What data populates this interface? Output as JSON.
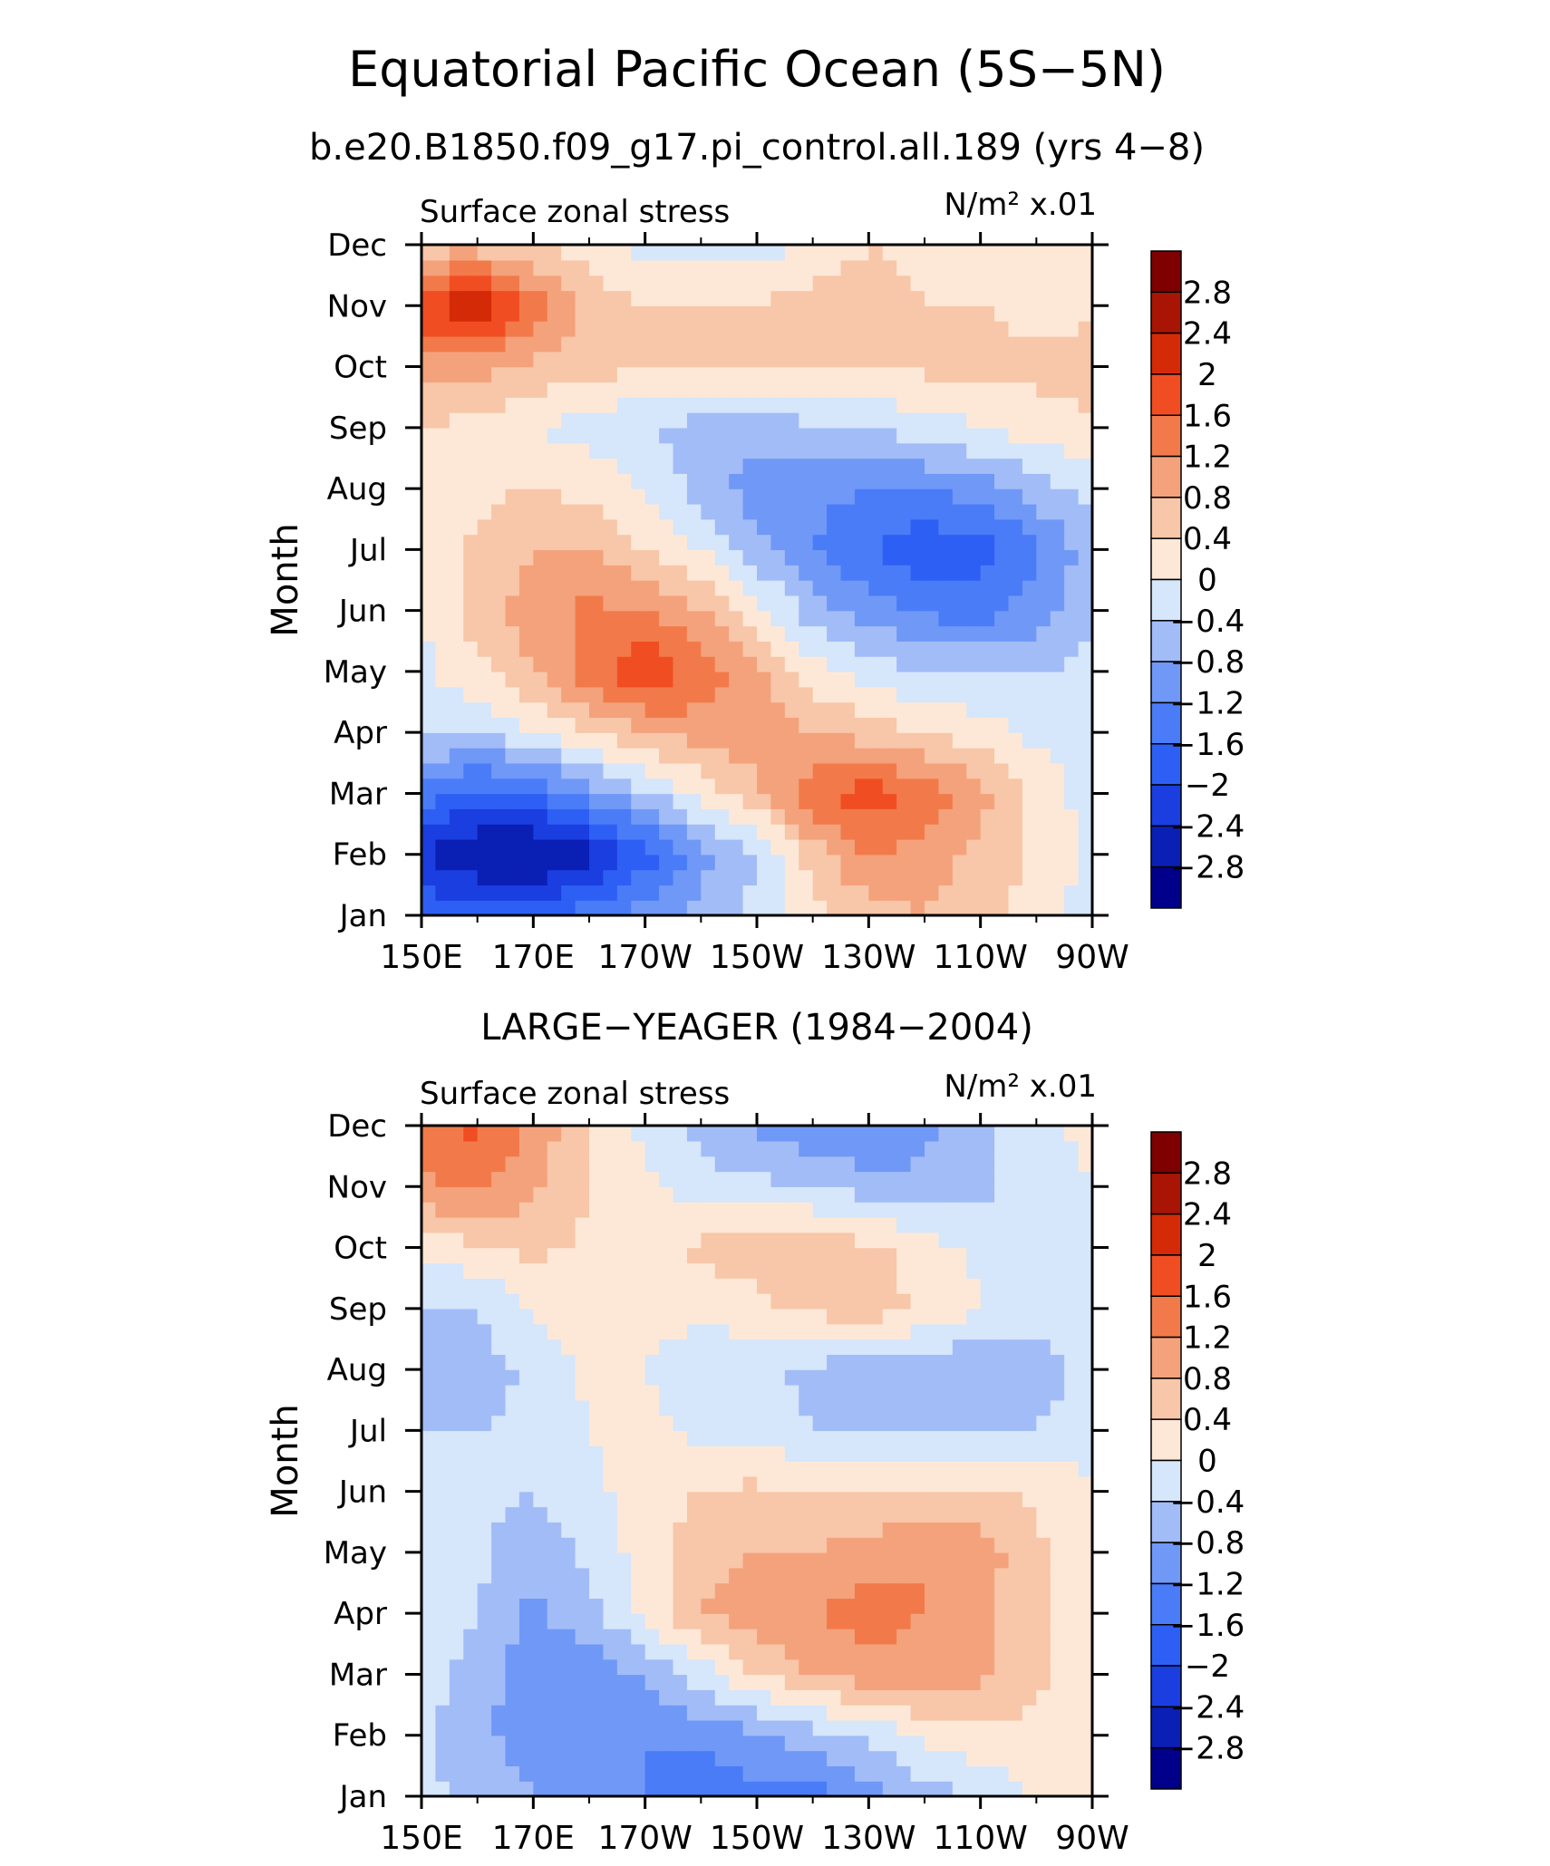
{
  "figure": {
    "title": "Equatorial Pacific Ocean (5S−5N)",
    "subtitle": "b.e20.B1850.f09_g17.pi_control.all.189 (yrs 4−8)"
  },
  "chart_data": [
    {
      "type": "heatmap",
      "panel_title": "",
      "variable_label": "Surface zonal stress",
      "units_label": "N/m² x.01",
      "ylabel": "Month",
      "x_ticks": [
        "150E",
        "170E",
        "170W",
        "150W",
        "130W",
        "110W",
        "90W"
      ],
      "x_tick_lon": [
        150,
        170,
        190,
        210,
        230,
        250,
        270
      ],
      "y_ticks": [
        "Jan",
        "Feb",
        "Mar",
        "Apr",
        "May",
        "Jun",
        "Jul",
        "Aug",
        "Sep",
        "Oct",
        "Nov",
        "Dec"
      ],
      "colorbar_labels": [
        "2.8",
        "2.4",
        "2",
        "1.6",
        "1.2",
        "0.8",
        "0.4",
        "0",
        "−0.4",
        "−0.8",
        "−1.2",
        "−1.6",
        "−2",
        "−2.4",
        "−2.8"
      ],
      "levels": [
        -2.8,
        -2.4,
        -2.0,
        -1.6,
        -1.2,
        -0.8,
        -0.4,
        0,
        0.4,
        0.8,
        1.2,
        1.6,
        2.0,
        2.4,
        2.8
      ],
      "lon_range": [
        150,
        270
      ],
      "x": [
        150,
        160,
        170,
        180,
        190,
        200,
        210,
        220,
        230,
        240,
        250,
        260,
        270
      ],
      "y": [
        "Jan",
        "Feb",
        "Mar",
        "Apr",
        "May",
        "Jun",
        "Jul",
        "Aug",
        "Sep",
        "Oct",
        "Nov",
        "Dec"
      ],
      "z": [
        [
          -1.6,
          -1.8,
          -1.7,
          -1.4,
          -1.0,
          -0.6,
          -0.3,
          0.2,
          0.6,
          0.8,
          0.6,
          0.2,
          -0.2
        ],
        [
          -2.4,
          -2.8,
          -2.9,
          -2.6,
          -1.8,
          -1.0,
          -0.4,
          0.6,
          1.3,
          1.0,
          0.7,
          0.3,
          -0.1
        ],
        [
          -1.4,
          -1.8,
          -1.6,
          -1.0,
          -0.5,
          0.1,
          0.7,
          1.5,
          1.8,
          1.5,
          0.9,
          0.3,
          -0.2
        ],
        [
          -0.3,
          -0.4,
          0.0,
          0.4,
          0.8,
          1.0,
          1.0,
          0.8,
          0.6,
          0.4,
          0.2,
          -0.1,
          -0.3
        ],
        [
          -0.1,
          0.3,
          0.8,
          1.4,
          2.0,
          1.5,
          0.9,
          0.2,
          -0.2,
          -0.4,
          -0.4,
          -0.4,
          -0.3
        ],
        [
          0.0,
          0.6,
          1.0,
          1.3,
          1.2,
          0.8,
          0.2,
          -0.6,
          -1.0,
          -1.3,
          -1.4,
          -1.0,
          -0.4
        ],
        [
          0.2,
          0.5,
          0.8,
          0.8,
          0.4,
          0.0,
          -0.7,
          -1.2,
          -1.6,
          -1.9,
          -1.8,
          -1.3,
          -0.6
        ],
        [
          0.1,
          0.3,
          0.4,
          0.3,
          0.0,
          -0.6,
          -1.0,
          -1.1,
          -1.2,
          -1.2,
          -1.0,
          -0.6,
          -0.2
        ],
        [
          0.4,
          0.2,
          0.0,
          -0.2,
          -0.4,
          -0.6,
          -0.6,
          -0.5,
          -0.4,
          -0.2,
          0.0,
          0.2,
          0.3
        ],
        [
          0.9,
          1.0,
          0.7,
          0.5,
          0.5,
          0.5,
          0.4,
          0.4,
          0.4,
          0.5,
          0.5,
          0.5,
          0.6
        ],
        [
          2.0,
          2.4,
          1.5,
          0.6,
          0.4,
          0.4,
          0.4,
          0.6,
          0.6,
          0.4,
          0.4,
          0.3,
          0.3
        ],
        [
          0.6,
          0.6,
          0.4,
          0.2,
          -0.1,
          -0.2,
          -0.2,
          0.1,
          0.4,
          0.3,
          0.3,
          0.3,
          0.3
        ]
      ]
    },
    {
      "type": "heatmap",
      "panel_title": "LARGE−YEAGER (1984−2004)",
      "variable_label": "Surface zonal stress",
      "units_label": "N/m² x.01",
      "ylabel": "Month",
      "x_ticks": [
        "150E",
        "170E",
        "170W",
        "150W",
        "130W",
        "110W",
        "90W"
      ],
      "x_tick_lon": [
        150,
        170,
        190,
        210,
        230,
        250,
        270
      ],
      "y_ticks": [
        "Jan",
        "Feb",
        "Mar",
        "Apr",
        "May",
        "Jun",
        "Jul",
        "Aug",
        "Sep",
        "Oct",
        "Nov",
        "Dec"
      ],
      "colorbar_labels": [
        "2.8",
        "2.4",
        "2",
        "1.6",
        "1.2",
        "0.8",
        "0.4",
        "0",
        "−0.4",
        "−0.8",
        "−1.2",
        "−1.6",
        "−2",
        "−2.4",
        "−2.8"
      ],
      "levels": [
        -2.8,
        -2.4,
        -2.0,
        -1.6,
        -1.2,
        -0.8,
        -0.4,
        0,
        0.4,
        0.8,
        1.2,
        1.6,
        2.0,
        2.4,
        2.8
      ],
      "lon_range": [
        150,
        270
      ],
      "x": [
        150,
        160,
        170,
        180,
        190,
        200,
        210,
        220,
        230,
        240,
        250,
        260,
        270
      ],
      "y": [
        "Jan",
        "Feb",
        "Mar",
        "Apr",
        "May",
        "Jun",
        "Jul",
        "Aug",
        "Sep",
        "Oct",
        "Nov",
        "Dec"
      ],
      "z": [
        [
          -0.3,
          -0.5,
          -0.8,
          -0.9,
          -1.2,
          -1.5,
          -1.3,
          -1.4,
          -1.0,
          -0.6,
          -0.3,
          0.0,
          0.1
        ],
        [
          -0.3,
          -0.7,
          -1.0,
          -1.1,
          -1.2,
          -1.1,
          -0.9,
          -0.6,
          -0.3,
          0.1,
          0.3,
          0.3,
          0.2
        ],
        [
          -0.2,
          -0.6,
          -1.1,
          -1.2,
          -0.7,
          -0.2,
          0.4,
          0.8,
          1.0,
          1.0,
          0.9,
          0.5,
          0.2
        ],
        [
          -0.1,
          -0.4,
          -0.9,
          -0.5,
          0.1,
          0.8,
          1.0,
          1.2,
          1.4,
          1.2,
          0.9,
          0.5,
          0.1
        ],
        [
          -0.2,
          -0.3,
          -0.7,
          -0.3,
          0.2,
          0.7,
          0.8,
          0.8,
          1.0,
          1.2,
          1.0,
          0.5,
          0.1
        ],
        [
          -0.2,
          -0.3,
          -0.4,
          -0.1,
          0.2,
          0.4,
          0.5,
          0.4,
          0.4,
          0.5,
          0.5,
          0.3,
          0.1
        ],
        [
          -0.4,
          -0.4,
          -0.3,
          0.0,
          0.1,
          -0.1,
          -0.2,
          -0.4,
          -0.5,
          -0.5,
          -0.5,
          -0.4,
          -0.2
        ],
        [
          -0.5,
          -0.6,
          -0.3,
          0.1,
          0.0,
          -0.3,
          -0.3,
          -0.5,
          -0.7,
          -0.7,
          -0.8,
          -0.6,
          -0.2
        ],
        [
          -0.4,
          -0.4,
          0.0,
          0.3,
          0.2,
          0.1,
          0.3,
          0.5,
          0.7,
          0.3,
          0.0,
          -0.3,
          -0.2
        ],
        [
          0.1,
          0.3,
          0.5,
          0.3,
          0.2,
          0.5,
          0.6,
          0.7,
          0.5,
          0.2,
          -0.1,
          -0.2,
          -0.1
        ],
        [
          1.1,
          1.3,
          0.9,
          0.4,
          0.1,
          -0.2,
          -0.3,
          -0.4,
          -0.6,
          -0.7,
          -0.5,
          -0.2,
          0.0
        ],
        [
          1.4,
          1.7,
          1.1,
          0.4,
          -0.1,
          -0.6,
          -0.9,
          -1.1,
          -1.3,
          -0.9,
          -0.5,
          -0.1,
          0.1
        ]
      ]
    }
  ],
  "colors": {
    "contour_fills": [
      "#00008b",
      "#0a1fb4",
      "#1a3ee0",
      "#2e5ff5",
      "#4a7cf8",
      "#7098f7",
      "#a2bcf7",
      "#d6e6fb",
      "#fde8d7",
      "#f8c6a8",
      "#f4a27c",
      "#f27a4a",
      "#f04e22",
      "#d42a08",
      "#a81505",
      "#7e0000"
    ]
  }
}
